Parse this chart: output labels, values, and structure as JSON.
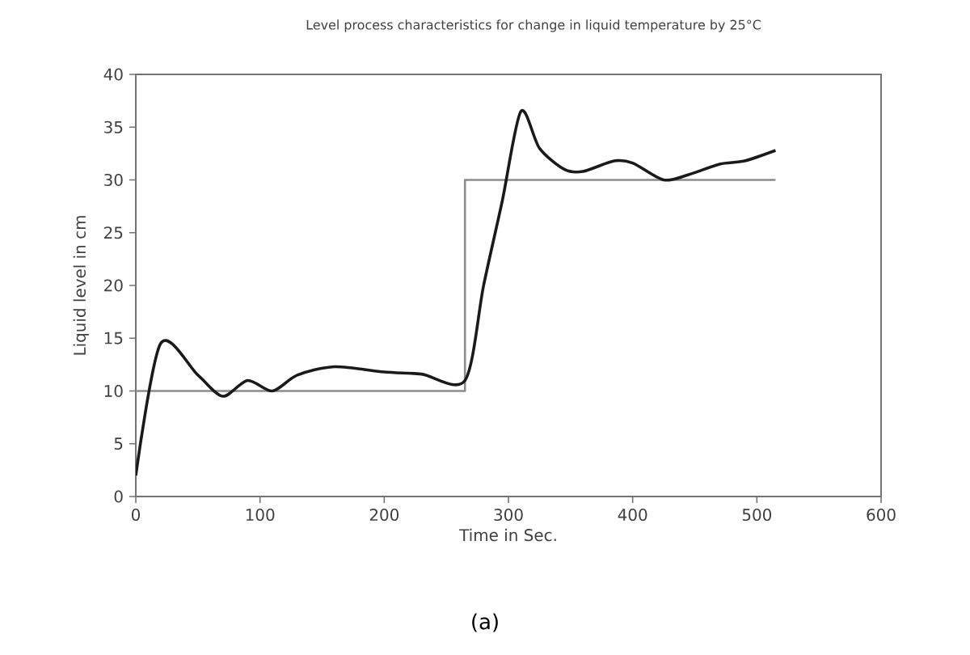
{
  "chart_data": {
    "type": "line",
    "title": "Level process characteristics for change in liquid temperature by 25°C",
    "xlabel": "Time in Sec.",
    "ylabel": "Liquid level in cm",
    "annotations": [
      "(a)"
    ],
    "xlim": [
      0,
      600
    ],
    "xticks": [
      0,
      100,
      200,
      300,
      400,
      500,
      600
    ],
    "ylim": [
      0,
      40
    ],
    "yticks": [
      0,
      5,
      10,
      15,
      20,
      25,
      30,
      35,
      40
    ],
    "grid": false,
    "series": [
      {
        "type": "step",
        "color": "#8c8c8c",
        "x": [
          0,
          265,
          515
        ],
        "values": [
          10,
          30,
          30
        ]
      },
      {
        "color": "#1a1a1a",
        "x": [
          0,
          20,
          50,
          70,
          90,
          110,
          130,
          160,
          200,
          230,
          265,
          280,
          295,
          310,
          325,
          345,
          360,
          385,
          400,
          425,
          445,
          470,
          490,
          515
        ],
        "values": [
          2,
          14.5,
          11.5,
          9.5,
          11,
          10,
          11.5,
          12.3,
          11.8,
          11.6,
          11,
          20,
          28,
          36.5,
          33,
          31,
          30.8,
          31.8,
          31.6,
          30,
          30.5,
          31.5,
          31.8,
          32.8
        ]
      }
    ]
  }
}
